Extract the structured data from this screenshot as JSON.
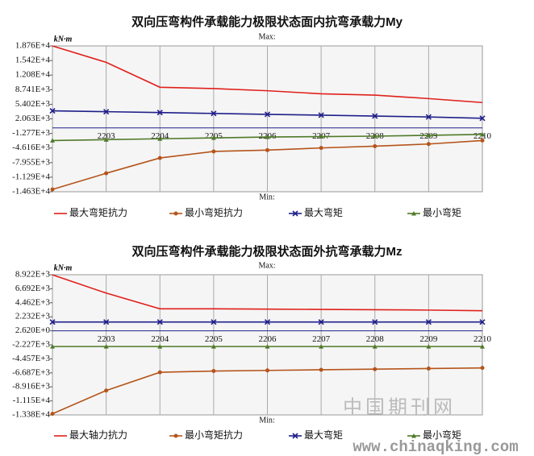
{
  "chart_data": [
    {
      "type": "line",
      "title": "双向压弯构件承载能力极限状态面内抗弯承载力My",
      "ylabel": "kN·m",
      "max_label": "Max:",
      "min_label": "Min:",
      "categories": [
        null,
        "2203",
        "2204",
        "2205",
        "2206",
        "2207",
        "2208",
        "2209",
        "2210"
      ],
      "ylim": [
        -14630,
        18760
      ],
      "yticks": [
        {
          "value": 18760,
          "label": "1.876E+4"
        },
        {
          "value": 15420,
          "label": "1.542E+4"
        },
        {
          "value": 12080,
          "label": "1.208E+4"
        },
        {
          "value": 8741,
          "label": "8.741E+3"
        },
        {
          "value": 5402,
          "label": "5.402E+3"
        },
        {
          "value": 2063,
          "label": "2.063E+3"
        },
        {
          "value": -1277,
          "label": "-1.277E+3"
        },
        {
          "value": -4616,
          "label": "-4.616E+3"
        },
        {
          "value": -7955,
          "label": "-7.955E+3"
        },
        {
          "value": -11290,
          "label": "-1.129E+4"
        },
        {
          "value": -14630,
          "label": "-1.463E+4"
        }
      ],
      "series": [
        {
          "name": "最大弯矩抗力",
          "color": "#e0201b",
          "marker": "none",
          "values": [
            18760,
            15000,
            9300,
            9000,
            8500,
            7800,
            7500,
            6700,
            5800
          ]
        },
        {
          "name": "最小弯矩抗力",
          "color": "#b5541a",
          "marker": "circle",
          "values": [
            -14100,
            -10400,
            -6900,
            -5400,
            -5100,
            -4600,
            -4200,
            -3700,
            -2900
          ]
        },
        {
          "name": "最大弯矩",
          "color": "#1f1f8a",
          "marker": "x",
          "values": [
            3900,
            3700,
            3500,
            3300,
            3100,
            2900,
            2700,
            2500,
            2200
          ]
        },
        {
          "name": "最小弯矩",
          "color": "#4f7a28",
          "marker": "triangle",
          "values": [
            -2900,
            -2700,
            -2500,
            -2300,
            -2100,
            -2000,
            -1900,
            -1700,
            -1500
          ]
        }
      ]
    },
    {
      "type": "line",
      "title": "双向压弯构件承载能力极限状态面外抗弯承载力Mz",
      "ylabel": "kN·m",
      "max_label": "Max:",
      "min_label": "Min:",
      "categories": [
        null,
        "2203",
        "2204",
        "2205",
        "2206",
        "2207",
        "2208",
        "2209",
        "2210"
      ],
      "ylim": [
        -13380,
        8922
      ],
      "yticks": [
        {
          "value": 8922,
          "label": "8.922E+3"
        },
        {
          "value": 6692,
          "label": "6.692E+3"
        },
        {
          "value": 4462,
          "label": "4.462E+3"
        },
        {
          "value": 2232,
          "label": "2.232E+3"
        },
        {
          "value": 2.62,
          "label": "2.620E+0"
        },
        {
          "value": -2227,
          "label": "-2.227E+3"
        },
        {
          "value": -4457,
          "label": "-4.457E+3"
        },
        {
          "value": -6687,
          "label": "-6.687E+3"
        },
        {
          "value": -8916,
          "label": "-8.916E+3"
        },
        {
          "value": -11150,
          "label": "-1.115E+4"
        },
        {
          "value": -13380,
          "label": "-1.338E+4"
        }
      ],
      "series": [
        {
          "name": "最大轴力抗力",
          "color": "#e0201b",
          "marker": "none",
          "values": [
            8900,
            6000,
            3500,
            3500,
            3450,
            3400,
            3350,
            3300,
            3200
          ]
        },
        {
          "name": "最小弯矩抗力",
          "color": "#b5541a",
          "marker": "circle",
          "values": [
            -13200,
            -9500,
            -6600,
            -6400,
            -6300,
            -6200,
            -6100,
            -6000,
            -5900
          ]
        },
        {
          "name": "最大弯矩",
          "color": "#1f1f8a",
          "marker": "x",
          "values": [
            1400,
            1400,
            1400,
            1400,
            1400,
            1400,
            1400,
            1400,
            1400
          ]
        },
        {
          "name": "最小弯矩",
          "color": "#4f7a28",
          "marker": "triangle",
          "values": [
            -2500,
            -2500,
            -2500,
            -2500,
            -2500,
            -2500,
            -2500,
            -2500,
            -2500
          ]
        }
      ]
    }
  ],
  "watermark": {
    "logo": "中国期刊网",
    "url": "www.chinaqking.com"
  }
}
